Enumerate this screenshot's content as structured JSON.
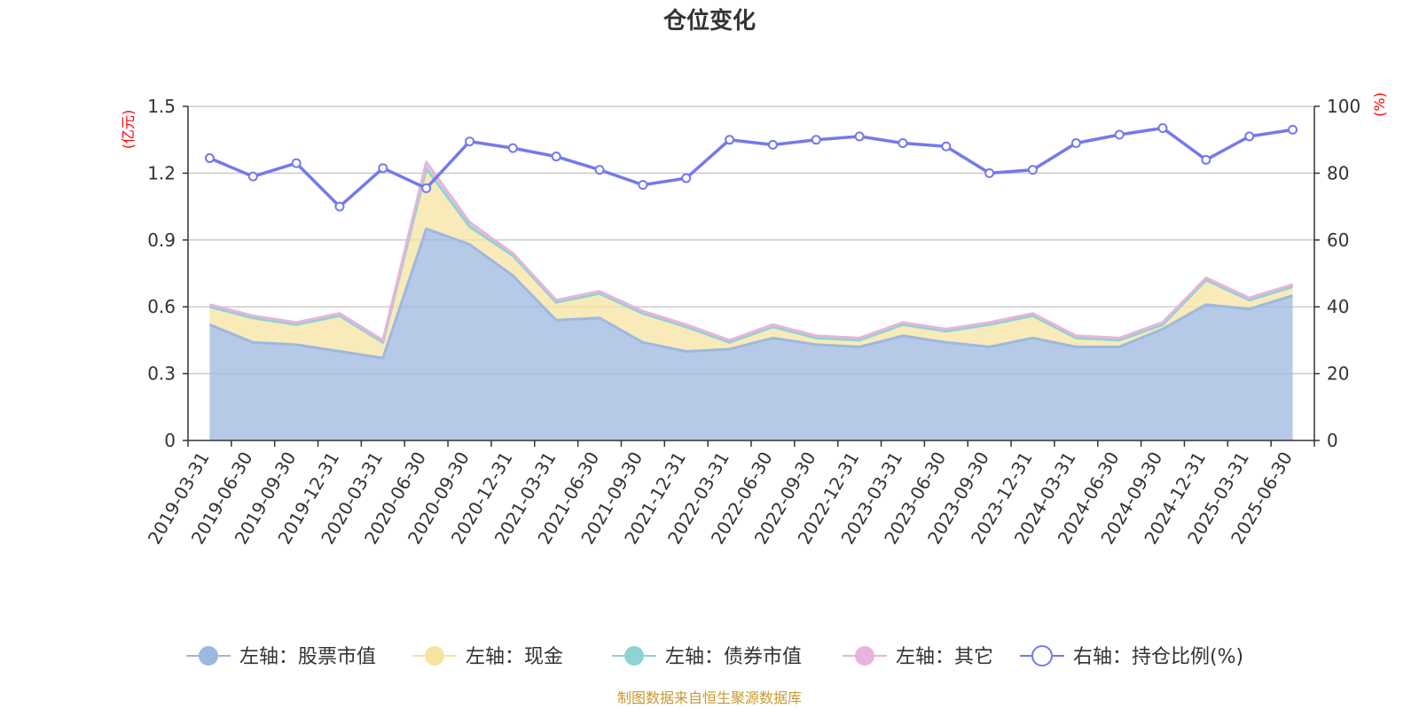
{
  "chart_data": {
    "type": "area",
    "title": "仓位变化",
    "left_axis": {
      "unit": "(亿元)",
      "ylim": [
        0,
        1.5
      ],
      "ticks": [
        "0",
        "0.3",
        "0.6",
        "0.9",
        "1.2",
        "1.5"
      ]
    },
    "right_axis": {
      "unit": "(%)",
      "ylim": [
        0,
        100
      ],
      "ticks": [
        "0",
        "20",
        "40",
        "60",
        "80",
        "100"
      ]
    },
    "categories": [
      "2019-03-31",
      "2019-06-30",
      "2019-09-30",
      "2019-12-31",
      "2020-03-31",
      "2020-06-30",
      "2020-09-30",
      "2020-12-31",
      "2021-03-31",
      "2021-06-30",
      "2021-09-30",
      "2021-12-31",
      "2022-03-31",
      "2022-06-30",
      "2022-09-30",
      "2022-12-31",
      "2023-03-31",
      "2023-06-30",
      "2023-09-30",
      "2023-12-31",
      "2024-03-31",
      "2024-06-30",
      "2024-09-30",
      "2024-12-31",
      "2025-03-31",
      "2025-06-30"
    ],
    "series": [
      {
        "name": "左轴：股票市值",
        "axis": "left",
        "stack": true,
        "color": "#9db8e0",
        "values": [
          0.52,
          0.44,
          0.43,
          0.4,
          0.37,
          0.95,
          0.88,
          0.74,
          0.54,
          0.55,
          0.44,
          0.4,
          0.41,
          0.46,
          0.43,
          0.42,
          0.47,
          0.44,
          0.42,
          0.46,
          0.42,
          0.42,
          0.5,
          0.61,
          0.59,
          0.65
        ]
      },
      {
        "name": "左轴：现金",
        "axis": "left",
        "stack": true,
        "color": "#f7e3a1",
        "values": [
          0.08,
          0.11,
          0.09,
          0.16,
          0.07,
          0.27,
          0.08,
          0.09,
          0.08,
          0.11,
          0.13,
          0.11,
          0.03,
          0.05,
          0.03,
          0.03,
          0.05,
          0.05,
          0.1,
          0.1,
          0.04,
          0.03,
          0.02,
          0.11,
          0.04,
          0.04
        ]
      },
      {
        "name": "左轴：债券市值",
        "axis": "left",
        "stack": true,
        "color": "#8fd3d3",
        "values": [
          0,
          0,
          0,
          0,
          0,
          0,
          0,
          0,
          0,
          0,
          0,
          0,
          0,
          0,
          0,
          0,
          0,
          0,
          0,
          0,
          0,
          0,
          0,
          0,
          0,
          0
        ]
      },
      {
        "name": "左轴：其它",
        "axis": "left",
        "stack": true,
        "color": "#e8b4db",
        "values": [
          0.01,
          0.01,
          0.01,
          0.01,
          0.01,
          0.03,
          0.02,
          0.01,
          0.01,
          0.01,
          0.01,
          0.01,
          0.01,
          0.01,
          0.01,
          0.01,
          0.01,
          0.01,
          0.01,
          0.01,
          0.01,
          0.01,
          0.01,
          0.01,
          0.01,
          0.01
        ]
      },
      {
        "name": "右轴：持仓比例(%)",
        "axis": "right",
        "stack": false,
        "color": "#7479ec",
        "values": [
          84.5,
          79.0,
          83.0,
          70.0,
          81.5,
          75.5,
          89.5,
          87.5,
          85.0,
          81.0,
          76.5,
          78.5,
          90.0,
          88.5,
          90.0,
          91.0,
          89.0,
          88.0,
          80.0,
          81.0,
          89.0,
          91.5,
          93.5,
          84.0,
          91.0,
          93.0
        ]
      }
    ],
    "grid": true,
    "legend": "bottom"
  },
  "source_text": "制图数据来自恒生聚源数据库"
}
